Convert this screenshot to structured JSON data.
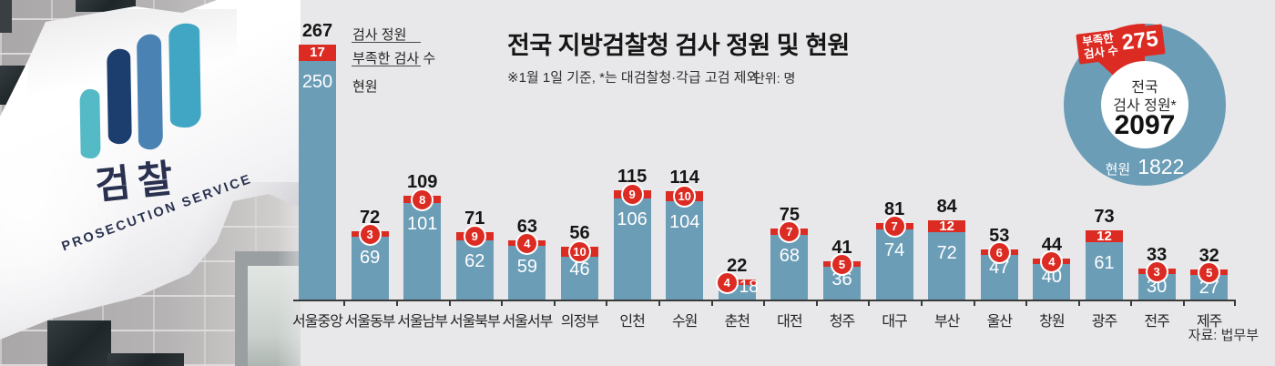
{
  "header": {
    "title": "전국 지방검찰청 검사 정원 및 현원",
    "note": "※1월 1일 기준, *는 대검찰청·각급 고검 제외",
    "unit_label": "단위: 명"
  },
  "legend": {
    "quota_label": "검사 정원",
    "shortage_label": "부족한 검사 수",
    "current_label": "현원"
  },
  "photo": {
    "flag_korean": "검찰",
    "flag_english": "PROSECUTION SERVICE",
    "logo_stripe_colors": [
      "#54bac6",
      "#1c3e6e",
      "#4a82b4",
      "#41a6c4"
    ]
  },
  "chart_data": {
    "type": "bar",
    "stacked": true,
    "unit": "명",
    "categories": [
      "서울중앙",
      "서울동부",
      "서울남부",
      "서울북부",
      "서울서부",
      "의정부",
      "인천",
      "수원",
      "춘천",
      "대전",
      "청주",
      "대구",
      "부산",
      "울산",
      "창원",
      "광주",
      "전주",
      "제주"
    ],
    "series": [
      {
        "name": "현원",
        "color": "#6b9db7",
        "values": [
          250,
          69,
          101,
          62,
          59,
          46,
          106,
          104,
          18,
          68,
          36,
          74,
          72,
          47,
          40,
          61,
          30,
          27
        ]
      },
      {
        "name": "부족한 검사 수",
        "color": "#dc2b22",
        "values": [
          17,
          3,
          8,
          9,
          4,
          10,
          9,
          10,
          4,
          7,
          5,
          7,
          12,
          6,
          4,
          12,
          3,
          5
        ]
      }
    ],
    "totals": [
      267,
      72,
      109,
      71,
      63,
      56,
      115,
      114,
      22,
      75,
      41,
      81,
      84,
      53,
      44,
      73,
      33,
      32
    ],
    "shortage_badge_circled": [
      false,
      true,
      true,
      true,
      true,
      true,
      true,
      true,
      true,
      true,
      true,
      true,
      false,
      true,
      true,
      false,
      true,
      true
    ],
    "compact_value_indices": [
      8
    ],
    "ylim": [
      0,
      280
    ],
    "grid": false,
    "legend_position": "top-left"
  },
  "donut": {
    "shortage_label_line1": "부족한",
    "shortage_label_line2": "검사 수",
    "shortage_value": 275,
    "center_line1": "전국",
    "center_line2": "검사 정원*",
    "center_value": 2097,
    "current_label": "현원",
    "current_value": 1822,
    "blue": "#6b9db7",
    "red": "#dc2b22"
  },
  "source": "자료: 법무부",
  "colors": {
    "background": "#e8e8ea",
    "bar_blue": "#6b9db7",
    "bar_red": "#dc2b22",
    "text_dark": "#161616"
  }
}
